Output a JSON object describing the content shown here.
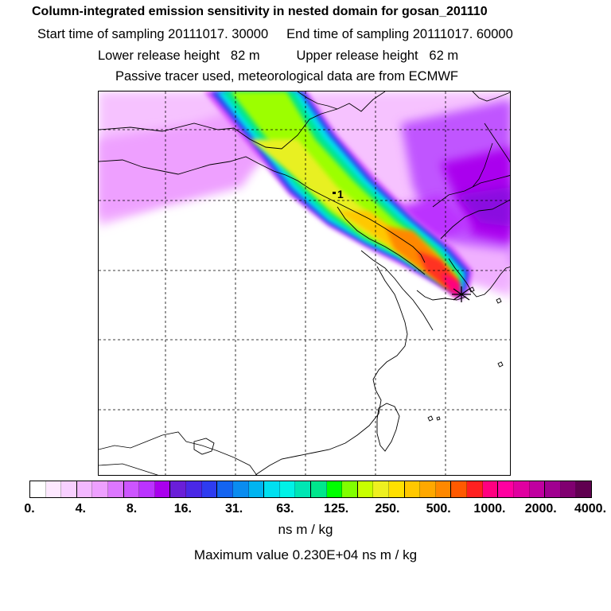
{
  "header": {
    "title": "Column-integrated emission sensitivity in nested domain for gosan_201110",
    "line2": "Start time of sampling 20111017. 30000     End time of sampling 20111017. 60000",
    "line3": "Lower release height   82 m          Upper release height   62 m",
    "line4": "Passive tracer used, meteorological data are from ECMWF"
  },
  "map": {
    "release_label": "1",
    "receptor_marker": "star-marker"
  },
  "colorbar": {
    "colors": [
      "#ffffff",
      "#fde8ff",
      "#f8d0ff",
      "#f3b8ff",
      "#eea0ff",
      "#dd77ff",
      "#cc55ff",
      "#bb33ff",
      "#aa00ee",
      "#6a1ed8",
      "#4a28e6",
      "#2e3cf0",
      "#1464f0",
      "#0a8cf0",
      "#00b4f0",
      "#00e0f0",
      "#00f2e6",
      "#00e6b4",
      "#00e68c",
      "#00ff00",
      "#80ff00",
      "#c8ff00",
      "#eef020",
      "#ffe000",
      "#ffc800",
      "#ffa800",
      "#ff8800",
      "#ff5a00",
      "#ff2020",
      "#ff0080",
      "#ff00a0",
      "#e000a0",
      "#c000a0",
      "#a00090",
      "#800070",
      "#600050"
    ],
    "ticks": [
      "0.",
      "4.",
      "8.",
      "16.",
      "31.",
      "63.",
      "125.",
      "250.",
      "500.",
      "1000.",
      "2000.",
      "4000."
    ],
    "units": "ns m / kg",
    "max_value": "Maximum value  0.230E+04 ns m / kg"
  }
}
